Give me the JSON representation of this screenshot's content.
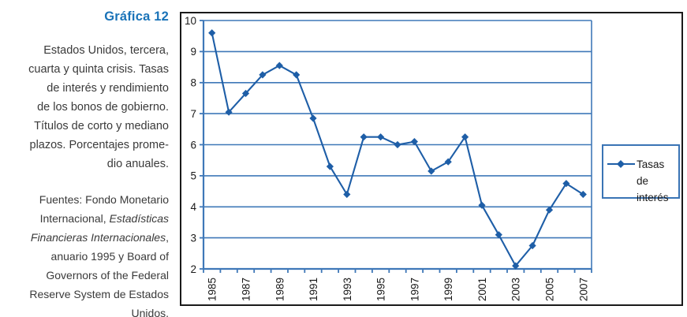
{
  "caption": {
    "title": "Gráfica 12",
    "description_lines": [
      "Estados Unidos, tercera,",
      "cuarta y quinta crisis. Tasas",
      "de interés y rendimiento",
      "de los bonos de gobierno.",
      "Títulos de corto y mediano",
      "plazos. Porcentajes prome-",
      "dio anuales."
    ],
    "sources_lines": [
      [
        {
          "t": "Fuentes: Fondo Monetario"
        }
      ],
      [
        {
          "t": "Internacional, "
        },
        {
          "t": "Estadísticas",
          "i": true
        }
      ],
      [
        {
          "t": "Financieras Internacionales",
          "i": true
        },
        {
          "t": ","
        }
      ],
      [
        {
          "t": "anuario 1995 y Board of"
        }
      ],
      [
        {
          "t": "Governors of the Federal"
        }
      ],
      [
        {
          "t": "Reserve System de Estados"
        }
      ],
      [
        {
          "t": "Unidos."
        }
      ]
    ]
  },
  "chart_data": {
    "type": "line",
    "title": "",
    "xlabel": "",
    "ylabel": "",
    "x": [
      1985,
      1986,
      1987,
      1988,
      1989,
      1990,
      1991,
      1992,
      1993,
      1994,
      1995,
      1996,
      1997,
      1998,
      1999,
      2000,
      2001,
      2002,
      2003,
      2004,
      2005,
      2006,
      2007
    ],
    "x_label_every": 2,
    "x_labels_shown": [
      "1985",
      "1987",
      "1989",
      "1991",
      "1993",
      "1995",
      "1997",
      "1999",
      "2001",
      "2003",
      "2005",
      "2007"
    ],
    "series": [
      {
        "name": "Tasas de interés",
        "marker": "diamond",
        "values": [
          9.6,
          7.05,
          7.65,
          8.25,
          8.55,
          8.25,
          6.85,
          5.3,
          4.4,
          6.25,
          6.25,
          6.0,
          6.1,
          5.15,
          5.45,
          6.25,
          4.05,
          3.1,
          2.1,
          2.75,
          3.9,
          4.75,
          4.4
        ]
      }
    ],
    "ylim": [
      2,
      10
    ],
    "ytick_step": 1,
    "grid": "horizontal",
    "legend_position": "right"
  },
  "colors": {
    "series_line": "#1e5ea7",
    "grid_line": "#3f78b8",
    "legend_border": "#3a74b5",
    "frame_border": "#1a1a1a",
    "axis_text": "#1a1a1a",
    "title_blue": "#1a73b8",
    "body_text": "#3a3a3a"
  }
}
